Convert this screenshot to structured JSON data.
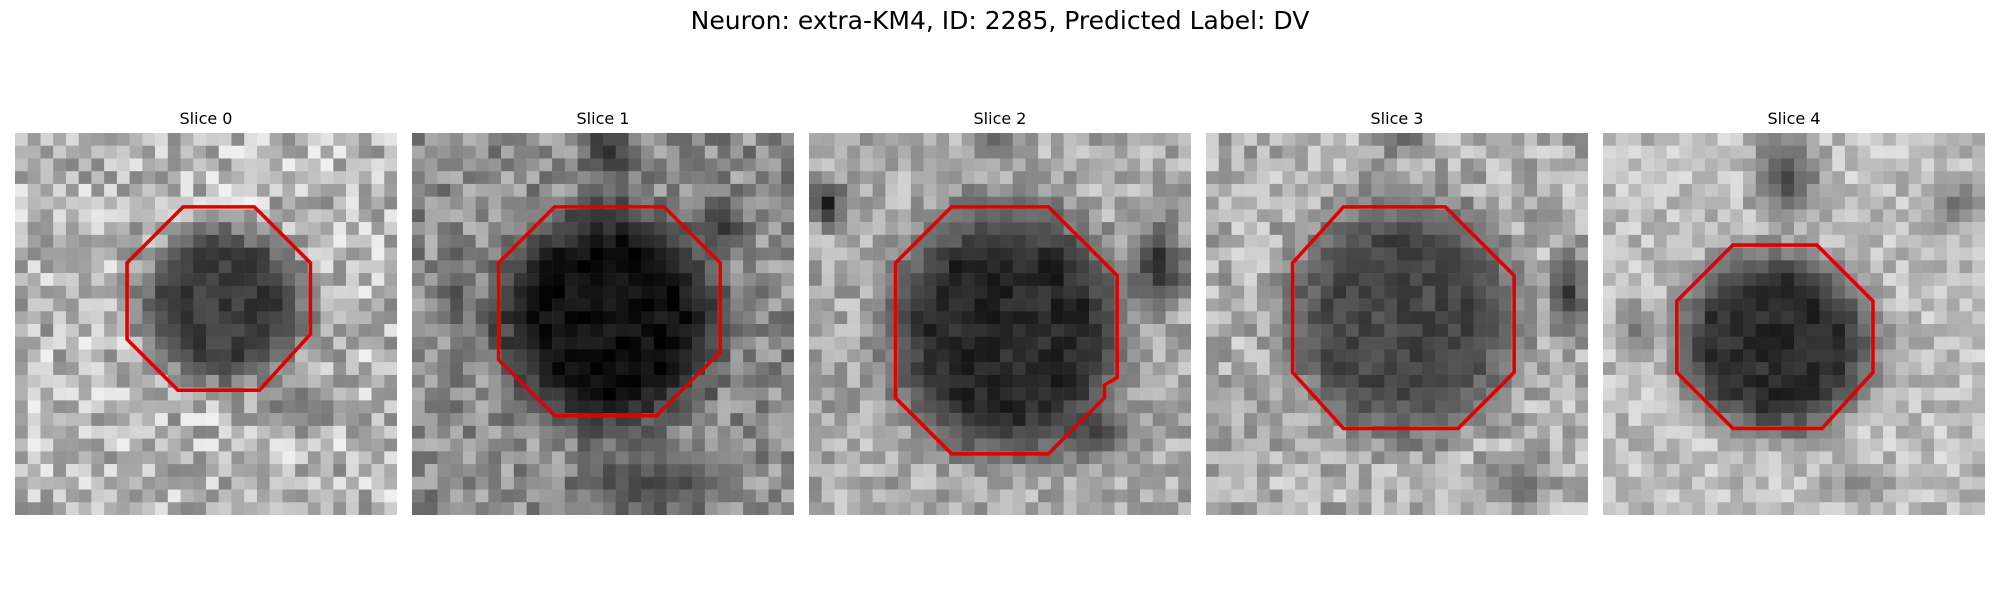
{
  "figure": {
    "title": "Neuron: extra-KM4, ID: 2285, Predicted Label: DV",
    "contour_color": "#e00000",
    "colormap": "gray"
  },
  "panels": [
    {
      "title": "Slice 0"
    },
    {
      "title": "Slice 1"
    },
    {
      "title": "Slice 2"
    },
    {
      "title": "Slice 3"
    },
    {
      "title": "Slice 4"
    }
  ]
}
